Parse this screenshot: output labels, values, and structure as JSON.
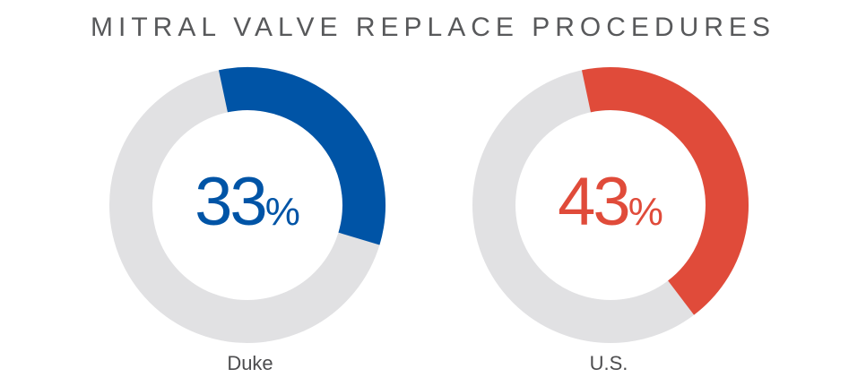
{
  "chart_data": {
    "type": "pie",
    "title": "MITRAL VALVE REPLACE PROCEDURES",
    "percent_symbol": "%",
    "categories": [
      "Duke",
      "U.S."
    ],
    "values": [
      33,
      43
    ],
    "value_labels": [
      "33",
      "43"
    ],
    "colors": [
      "#0054a6",
      "#e04b3a"
    ],
    "remainder_color": "#e1e1e3"
  }
}
